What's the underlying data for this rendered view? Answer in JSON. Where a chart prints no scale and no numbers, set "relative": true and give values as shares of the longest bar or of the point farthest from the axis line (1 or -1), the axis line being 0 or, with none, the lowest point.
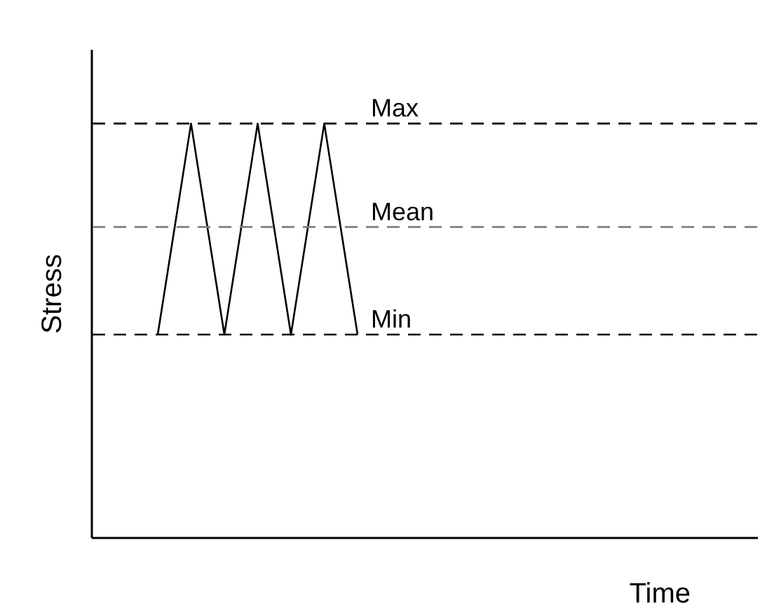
{
  "chart_data": {
    "type": "line",
    "relative": true,
    "xlabel": "Time",
    "ylabel": "Stress",
    "categories": [
      null,
      null,
      null,
      null,
      null,
      null,
      null,
      null,
      null,
      null,
      null,
      null,
      null,
      null,
      null,
      null,
      null,
      null,
      null,
      null,
      null
    ],
    "series": [
      {
        "color": "#000000",
        "values": [
          null,
          null,
          0.49,
          1,
          0.49,
          1,
          0.49,
          1,
          0.49,
          null,
          null,
          null,
          null,
          null,
          null,
          null,
          null,
          null,
          null,
          null,
          null
        ]
      }
    ],
    "ref_lines": [
      {
        "axis": "y",
        "value": 1,
        "label": "Max",
        "color": "#000000",
        "line_style": "dashed"
      },
      {
        "axis": "y",
        "value": 0.75,
        "label": "Mean",
        "color": "#808080",
        "line_style": "dashed"
      },
      {
        "axis": "y",
        "value": 0.49,
        "label": "Min",
        "color": "#000000",
        "line_style": "dashed"
      }
    ],
    "tick_labels": false,
    "marker": "none",
    "line_style": "solid"
  }
}
